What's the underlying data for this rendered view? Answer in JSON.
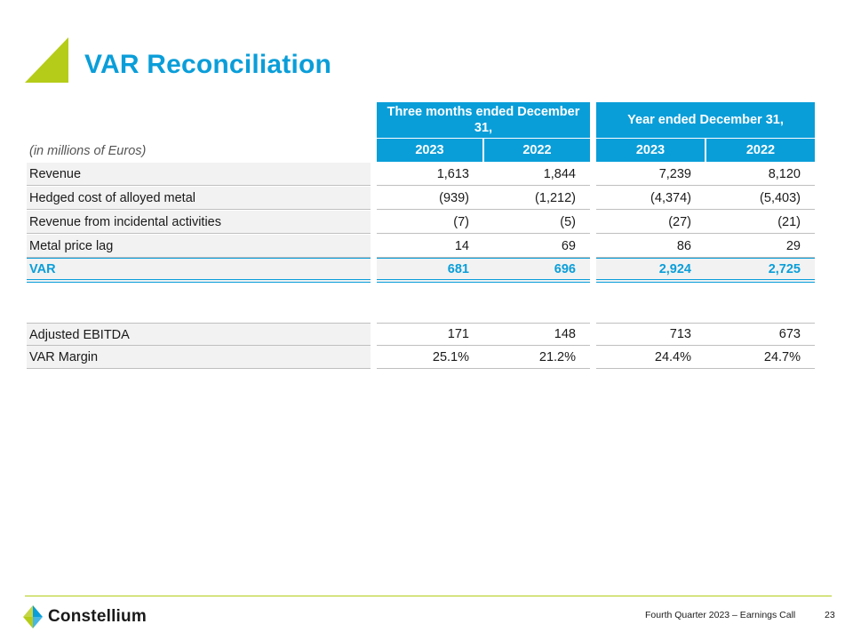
{
  "title": "VAR Reconciliation",
  "units_label": "(in millions of Euros)",
  "header": {
    "group_a": "Three months ended December 31,",
    "group_b": "Year ended December 31,",
    "years": [
      "2023",
      "2022",
      "2023",
      "2022"
    ]
  },
  "rows": [
    {
      "label": "Revenue",
      "values": [
        "1,613",
        "1,844",
        "7,239",
        "8,120"
      ]
    },
    {
      "label": "Hedged cost of alloyed metal",
      "values": [
        "(939)",
        "(1,212)",
        "(4,374)",
        "(5,403)"
      ]
    },
    {
      "label": "Revenue from incidental activities",
      "values": [
        "(7)",
        "(5)",
        "(27)",
        "(21)"
      ]
    },
    {
      "label": "Metal price lag",
      "values": [
        "14",
        "69",
        "86",
        "29"
      ]
    },
    {
      "label": "VAR",
      "values": [
        "681",
        "696",
        "2,924",
        "2,725"
      ]
    },
    {
      "label": "Adjusted EBITDA",
      "values": [
        "171",
        "148",
        "713",
        "673"
      ]
    },
    {
      "label": "VAR Margin",
      "values": [
        "25.1%",
        "21.2%",
        "24.4%",
        "24.7%"
      ]
    }
  ],
  "footer": {
    "company": "Constellium",
    "event": "Fourth Quarter 2023 – Earnings Call",
    "page": "23"
  },
  "colors": {
    "accent_blue": "#0a9ed9",
    "accent_green": "#b5cc18"
  }
}
